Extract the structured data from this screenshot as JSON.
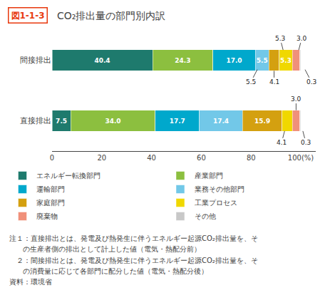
{
  "chart_data": {
    "type": "bar",
    "orientation": "horizontal",
    "stacked": true,
    "figure_number": "図1-1-3",
    "figure_number_color": "#e8380d",
    "title": "CO₂排出量の部門別内訳",
    "categories": [
      "直接排出",
      "間接排出"
    ],
    "series": [
      {
        "name": "エネルギー転換部門",
        "color": "#1e7a6d",
        "values": [
          7.5,
          40.4
        ],
        "value_labels": [
          "7.5",
          "40.4"
        ]
      },
      {
        "name": "産業部門",
        "color": "#8cbf3f",
        "values": [
          34.0,
          24.3
        ],
        "value_labels": [
          "34.0",
          "24.3"
        ]
      },
      {
        "name": "運輸部門",
        "color": "#00a8cc",
        "values": [
          17.7,
          17.0
        ],
        "value_labels": [
          "17.7",
          "17.0"
        ]
      },
      {
        "name": "業務その他部門",
        "color": "#72c8e8",
        "values": [
          17.4,
          5.5
        ],
        "value_labels": [
          "17.4",
          "5.5"
        ]
      },
      {
        "name": "家庭部門",
        "color": "#d4a010",
        "values": [
          15.9,
          4.1
        ],
        "value_labels": [
          "15.9",
          null
        ]
      },
      {
        "name": "工業プロセス",
        "color": "#f0d800",
        "values": [
          4.1,
          5.3
        ],
        "value_labels": [
          null,
          "5.3"
        ]
      },
      {
        "name": "廃棄物",
        "color": "#f0907a",
        "values": [
          3.0,
          3.0
        ],
        "value_labels": [
          null,
          null
        ]
      },
      {
        "name": "その他",
        "color": "#c8c8c8",
        "values": [
          0.3,
          0.3
        ],
        "value_labels": [
          null,
          null
        ]
      }
    ],
    "data_labels": true,
    "annotations": [
      {
        "category": "間接排出",
        "series": "工業プロセス",
        "text": "5.3",
        "side": "above"
      },
      {
        "category": "間接排出",
        "series": "廃棄物",
        "text": "3.0",
        "side": "above"
      },
      {
        "category": "間接排出",
        "series": "業務その他部門",
        "text": "5.5",
        "side": "below"
      },
      {
        "category": "間接排出",
        "series": "家庭部門",
        "text": "4.1",
        "side": "below"
      },
      {
        "category": "間接排出",
        "series": "その他",
        "text": "0.3",
        "side": "below"
      },
      {
        "category": "直接排出",
        "series": "廃棄物",
        "text": "3.0",
        "side": "above"
      },
      {
        "category": "直接排出",
        "series": "工業プロセス",
        "text": "4.1",
        "side": "below"
      },
      {
        "category": "直接排出",
        "series": "その他",
        "text": "0.3",
        "side": "below"
      }
    ],
    "xlim": [
      0,
      106
    ],
    "xticks": [
      0,
      20,
      40,
      60,
      80,
      {
        "value": 100,
        "label": "100(%)"
      }
    ],
    "grid": false,
    "legend": "bottom",
    "notes": [
      "注１：直接排出とは、発電及び熱発生に伴うエネルギー起源CO₂排出量を、そ",
      "      の生産者側の排出として計上した値（電気・熱配分前）",
      "　２：間接排出とは、発電及び熱発生に伴うエネルギー起源CO₂排出量を、そ",
      "      の消費量に応じて各部門に配分した値（電気・熱配分後）"
    ],
    "source": "資料：環境省"
  }
}
